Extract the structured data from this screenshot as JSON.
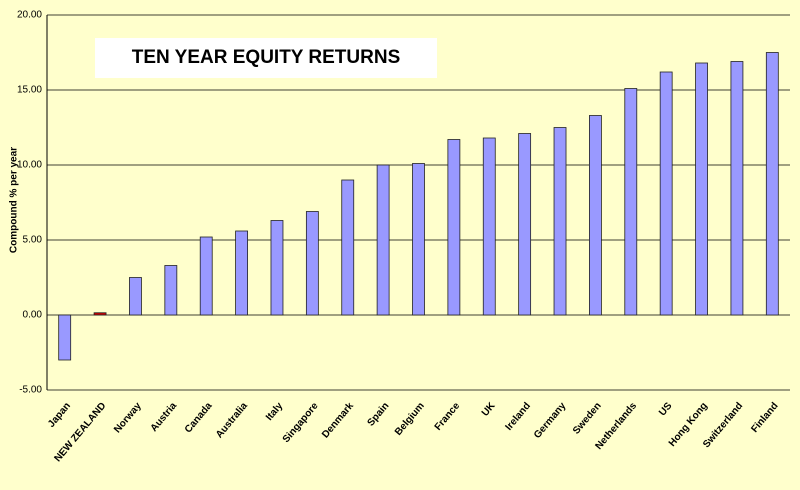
{
  "chart_data": {
    "type": "bar",
    "title": "TEN YEAR EQUITY RETURNS",
    "y_label": "Compound % per year",
    "categories": [
      "Japan",
      "NEW ZEALAND",
      "Norway",
      "Austria",
      "Canada",
      "Australia",
      "Italy",
      "Singapore",
      "Denmark",
      "Spain",
      "Belgium",
      "France",
      "UK",
      "Ireland",
      "Germany",
      "Sweden",
      "Netherlands",
      "US",
      "Hong Kong",
      "Switzerland",
      "Finland"
    ],
    "values": [
      -3.0,
      0.15,
      2.5,
      3.3,
      5.2,
      5.6,
      6.3,
      6.9,
      9.0,
      10.0,
      10.1,
      11.7,
      11.8,
      12.1,
      12.5,
      13.3,
      15.1,
      16.2,
      16.8,
      16.9,
      17.5
    ],
    "color": "#9999ff",
    "colors": [
      "#9999ff",
      "#cc0000",
      "#9999ff",
      "#9999ff",
      "#9999ff",
      "#9999ff",
      "#9999ff",
      "#9999ff",
      "#9999ff",
      "#9999ff",
      "#9999ff",
      "#9999ff",
      "#9999ff",
      "#9999ff",
      "#9999ff",
      "#9999ff",
      "#9999ff",
      "#9999ff",
      "#9999ff",
      "#9999ff",
      "#9999ff"
    ],
    "ylim": [
      -5,
      20
    ],
    "yticks": [
      {
        "value": -5,
        "label": "-5.00"
      },
      {
        "value": 0,
        "label": "0.00"
      },
      {
        "value": 5,
        "label": "5.00"
      },
      {
        "value": 10,
        "label": "10.00"
      },
      {
        "value": 15,
        "label": "15.00"
      },
      {
        "value": 20,
        "label": "20.00"
      }
    ],
    "grid": true
  }
}
